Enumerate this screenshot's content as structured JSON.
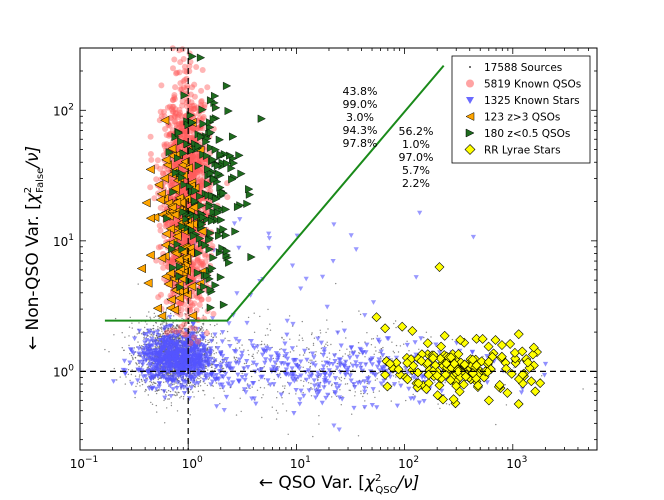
{
  "chart_data": {
    "type": "scatter",
    "title": "",
    "x_scale": "log",
    "y_scale": "log",
    "xlim": [
      0.1,
      6000
    ],
    "ylim": [
      0.25,
      300
    ],
    "grid": false,
    "legend_position": "top-right",
    "xlabel_prefix": "← QSO Var. [",
    "xlabel_sym": "χ",
    "xlabel_sup": "2",
    "xlabel_sub": "QSO",
    "xlabel_suffix": "/ν]",
    "ylabel_prefix": "← Non-QSO Var. [",
    "ylabel_sym": "χ",
    "ylabel_sup": "2",
    "ylabel_sub": "False",
    "ylabel_suffix": "/ν]",
    "x_ticks": [
      {
        "value": 0.1,
        "base": "10",
        "exp": "−1"
      },
      {
        "value": 1,
        "base": "10",
        "exp": "0"
      },
      {
        "value": 10,
        "base": "10",
        "exp": "1"
      },
      {
        "value": 100,
        "base": "10",
        "exp": "2"
      },
      {
        "value": 1000,
        "base": "10",
        "exp": "3"
      }
    ],
    "y_ticks": [
      {
        "value": 1,
        "base": "10",
        "exp": "0"
      },
      {
        "value": 10,
        "base": "10",
        "exp": "1"
      },
      {
        "value": 100,
        "base": "10",
        "exp": "2"
      }
    ],
    "reference_lines": {
      "vertical_x": 1,
      "horizontal_y": 1
    },
    "selection_boundary": [
      [
        0.17,
        2.45
      ],
      [
        2.3,
        2.45
      ],
      [
        230,
        220
      ]
    ],
    "legend": [
      {
        "label": "17588 Sources",
        "marker": "dot",
        "color": "#444444"
      },
      {
        "label": "5819 Known QSOs",
        "marker": "circle",
        "color": "#ff6666"
      },
      {
        "label": "1325 Known Stars",
        "marker": "triangle-down",
        "color": "#6a6aff"
      },
      {
        "label": "123 z>3 QSOs",
        "marker": "triangle-left",
        "color": "#ffa500"
      },
      {
        "label": "180 z<0.5 QSOs",
        "marker": "triangle-right",
        "color": "#1e6b1e"
      },
      {
        "label": "RR Lyrae Stars",
        "marker": "diamond",
        "color": "#ffff00"
      }
    ],
    "annotations": [
      {
        "group": "left",
        "x": 52,
        "y": 185,
        "lines": [
          {
            "text": "43.8%",
            "color": "#000000"
          },
          {
            "text": "99.0%",
            "color": "#e00000"
          },
          {
            "text": "3.0%",
            "color": "#0000d0"
          },
          {
            "text": "94.3%",
            "color": "#e8a000"
          },
          {
            "text": "97.8%",
            "color": "#008000"
          }
        ]
      },
      {
        "group": "right",
        "x": 340,
        "y": 112,
        "lines": [
          {
            "text": "56.2%",
            "color": "#000000"
          },
          {
            "text": "1.0%",
            "color": "#e00000"
          },
          {
            "text": "97.0%",
            "color": "#0000d0"
          },
          {
            "text": "5.7%",
            "color": "#e8a000"
          },
          {
            "text": "2.2%",
            "color": "#008000"
          }
        ]
      }
    ],
    "series": [
      {
        "name": "17588 Sources",
        "marker": "dot",
        "color": "#555555",
        "count": 2600,
        "clusters": [
          {
            "n": 2100,
            "cx": 0.75,
            "cy": 1.35,
            "sx": 1.45,
            "sy": 1.35,
            "weight": 0.6
          },
          {
            "n": 500,
            "cx": 12,
            "cy": 1.1,
            "sx": 6,
            "sy": 1.5,
            "weight": 0.4
          }
        ]
      },
      {
        "name": "5819 Known QSOs",
        "marker": "circle",
        "color": "#ff5a5a"
      },
      {
        "name": "1325 Known Stars",
        "marker": "triangle-down",
        "color": "#5555ff"
      },
      {
        "name": "123 z>3 QSOs",
        "marker": "triangle-left",
        "color": "#ffa500"
      },
      {
        "name": "180 z<0.5 QSOs",
        "marker": "triangle-right",
        "color": "#1e6b1e"
      },
      {
        "name": "RR Lyrae Stars",
        "marker": "diamond",
        "color": "#ffff00"
      }
    ]
  }
}
